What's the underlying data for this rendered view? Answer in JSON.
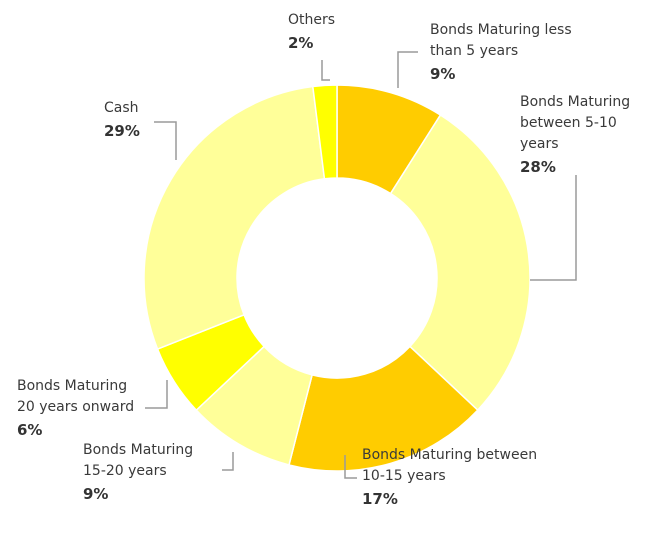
{
  "chart_data": {
    "type": "donut",
    "categories": [
      "Bonds Maturing less than 5 years",
      "Bonds Maturing between 5-10 years",
      "Bonds Maturing between 10-15 years",
      "Bonds Maturing 15-20 years",
      "Bonds Maturing 20 years onward",
      "Cash",
      "Others"
    ],
    "values": [
      9,
      28,
      17,
      9,
      6,
      29,
      2
    ],
    "value_labels": [
      "9%",
      "28%",
      "17%",
      "9%",
      "6%",
      "29%",
      "2%"
    ],
    "colors": [
      "#ffcc00",
      "#ffff99",
      "#ffcc00",
      "#ffff99",
      "#ffff00",
      "#ffff99",
      "#ffff00"
    ]
  }
}
